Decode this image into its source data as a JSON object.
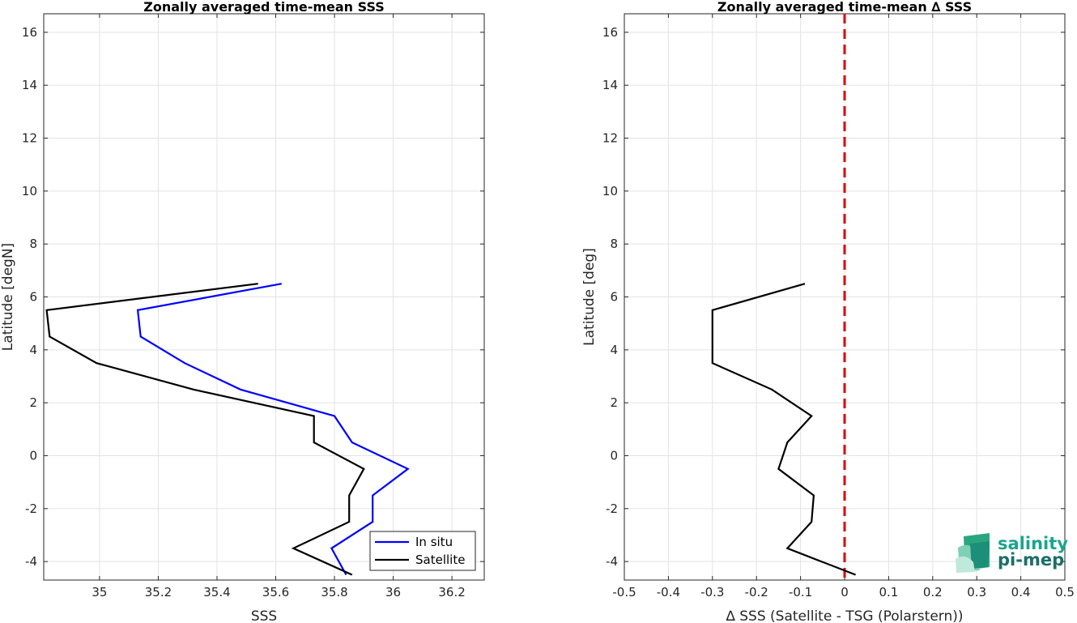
{
  "chart_data": [
    {
      "type": "line",
      "title": "Zonally averaged time-mean SSS",
      "xlabel": "SSS",
      "ylabel": "Latitude [degN]",
      "xlim": [
        34.81,
        36.31
      ],
      "ylim": [
        -4.7,
        16.7
      ],
      "xticks": [
        35,
        35.2,
        35.4,
        35.6,
        35.8,
        36,
        36.2
      ],
      "xtick_labels": [
        "35",
        "35.2",
        "35.4",
        "35.6",
        "35.8",
        "36",
        "36.2"
      ],
      "yticks": [
        -4,
        -2,
        0,
        2,
        4,
        6,
        8,
        10,
        12,
        14,
        16
      ],
      "ytick_labels": [
        "-4",
        "-2",
        "0",
        "2",
        "4",
        "6",
        "8",
        "10",
        "12",
        "14",
        "16"
      ],
      "grid": true,
      "legend": "bottom-right",
      "series": [
        {
          "name": "In situ",
          "color": "#0000ff",
          "x": [
            35.62,
            35.13,
            35.14,
            35.29,
            35.48,
            35.8,
            35.86,
            36.05,
            35.93,
            35.93,
            35.79,
            35.84
          ],
          "y": [
            6.5,
            5.5,
            4.5,
            3.5,
            2.5,
            1.5,
            0.5,
            -0.5,
            -1.5,
            -2.5,
            -3.5,
            -4.5
          ]
        },
        {
          "name": "Satellite",
          "color": "#000000",
          "x": [
            35.54,
            34.82,
            34.83,
            34.99,
            35.32,
            35.73,
            35.73,
            35.9,
            35.85,
            35.85,
            35.66,
            35.86
          ],
          "y": [
            6.5,
            5.5,
            4.5,
            3.5,
            2.5,
            1.5,
            0.5,
            -0.5,
            -1.5,
            -2.5,
            -3.5,
            -4.5
          ]
        }
      ]
    },
    {
      "type": "line",
      "title": "Zonally averaged time-mean ∆ SSS",
      "xlabel": "∆ SSS (Satellite - TSG (Polarstern))",
      "ylabel": "Latitude [deg]",
      "xlim": [
        -0.5,
        0.5
      ],
      "ylim": [
        -4.7,
        16.7
      ],
      "xticks": [
        -0.5,
        -0.4,
        -0.3,
        -0.2,
        -0.1,
        0,
        0.1,
        0.2,
        0.3,
        0.4,
        0.5
      ],
      "xtick_labels": [
        "-0.5",
        "-0.4",
        "-0.3",
        "-0.2",
        "-0.1",
        "0",
        "0.1",
        "0.2",
        "0.3",
        "0.4",
        "0.5"
      ],
      "yticks": [
        -4,
        -2,
        0,
        2,
        4,
        6,
        8,
        10,
        12,
        14,
        16
      ],
      "ytick_labels": [
        "-4",
        "-2",
        "0",
        "2",
        "4",
        "6",
        "8",
        "10",
        "12",
        "14",
        "16"
      ],
      "grid": true,
      "reference_line": {
        "x": 0,
        "color": "#e00000",
        "style": "dashed"
      },
      "series": [
        {
          "color": "#000000",
          "x": [
            -0.09,
            -0.3,
            -0.3,
            -0.3,
            -0.165,
            -0.075,
            -0.13,
            -0.15,
            -0.07,
            -0.075,
            -0.13,
            0.025
          ],
          "y": [
            6.5,
            5.5,
            4.5,
            3.5,
            2.5,
            1.5,
            0.5,
            -0.5,
            -1.5,
            -2.5,
            -3.5,
            -4.5
          ]
        }
      ]
    }
  ],
  "logo": {
    "line1": "salinity",
    "line2": "pi-mep",
    "color1": "#1aa58c",
    "color2": "#1b6e6a"
  }
}
